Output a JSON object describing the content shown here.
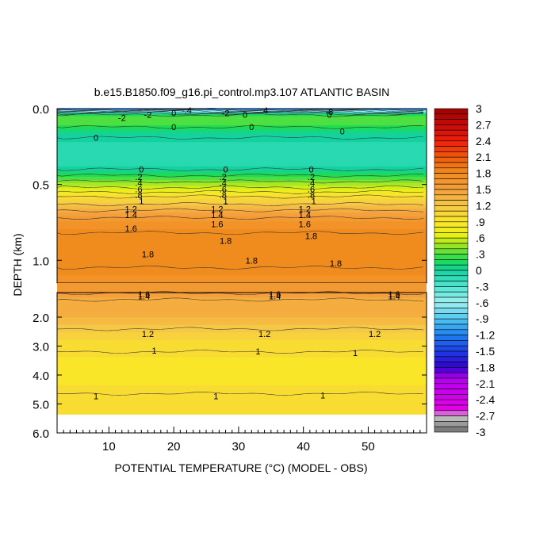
{
  "chart_data": {
    "type": "heatmap",
    "title": "b.e15.B1850.f09_g16.pi_control.mp3.107 ATLANTIC BASIN",
    "xlabel": "POTENTIAL TEMPERATURE (°C) (MODEL - OBS)",
    "ylabel": "DEPTH (km)",
    "xlim": [
      2,
      59
    ],
    "x_ticks": [
      "10",
      "20",
      "30",
      "40",
      "50"
    ],
    "x_tick_values": [
      10,
      20,
      30,
      40,
      50
    ],
    "upper_panel": {
      "ylim": [
        0,
        1.15
      ],
      "y_ticks": [
        "0.0",
        "0.5",
        "1.0"
      ],
      "y_tick_values": [
        0.0,
        0.5,
        1.0
      ]
    },
    "lower_panel": {
      "ylim": [
        1.15,
        6.0
      ],
      "y_ticks": [
        "2.0",
        "3.0",
        "4.0",
        "5.0",
        "6.0"
      ],
      "y_tick_values": [
        2.0,
        3.0,
        4.0,
        5.0,
        6.0
      ]
    },
    "data_bottom_depth": 5.35,
    "depth_profile": [
      {
        "depth": 0.0,
        "value": -1.4
      },
      {
        "depth": 0.02,
        "value": -0.5
      },
      {
        "depth": 0.04,
        "value": 0.2
      },
      {
        "depth": 0.07,
        "value": 0.35
      },
      {
        "depth": 0.11,
        "value": 0.25
      },
      {
        "depth": 0.16,
        "value": 0.05
      },
      {
        "depth": 0.22,
        "value": -0.05
      },
      {
        "depth": 0.3,
        "value": -0.15
      },
      {
        "depth": 0.36,
        "value": -0.1
      },
      {
        "depth": 0.4,
        "value": 0.0
      },
      {
        "depth": 0.44,
        "value": 0.2
      },
      {
        "depth": 0.48,
        "value": 0.4
      },
      {
        "depth": 0.52,
        "value": 0.6
      },
      {
        "depth": 0.55,
        "value": 0.8
      },
      {
        "depth": 0.58,
        "value": 1.0
      },
      {
        "depth": 0.63,
        "value": 1.2
      },
      {
        "depth": 0.67,
        "value": 1.4
      },
      {
        "depth": 0.72,
        "value": 1.6
      },
      {
        "depth": 0.82,
        "value": 1.8
      },
      {
        "depth": 1.0,
        "value": 1.85
      },
      {
        "depth": 1.1,
        "value": 1.75
      },
      {
        "depth": 1.2,
        "value": 1.55
      },
      {
        "depth": 1.4,
        "value": 1.4
      },
      {
        "depth": 2.0,
        "value": 1.35
      },
      {
        "depth": 2.4,
        "value": 1.2
      },
      {
        "depth": 2.8,
        "value": 1.05
      },
      {
        "depth": 3.2,
        "value": 1.0
      },
      {
        "depth": 3.5,
        "value": 0.92
      },
      {
        "depth": 3.8,
        "value": 0.88
      },
      {
        "depth": 4.1,
        "value": 0.9
      },
      {
        "depth": 4.5,
        "value": 0.98
      },
      {
        "depth": 4.8,
        "value": 1.02
      },
      {
        "depth": 5.35,
        "value": 1.05
      }
    ],
    "contour_labels": [
      {
        "text": "-2",
        "x": 16,
        "depth": 0.04
      },
      {
        "text": "0",
        "x": 20,
        "depth": 0.03
      },
      {
        "text": "-.4",
        "x": 22,
        "depth": 0.01
      },
      {
        "text": "-2",
        "x": 12,
        "depth": 0.06
      },
      {
        "text": "0",
        "x": 8,
        "depth": 0.19
      },
      {
        "text": "0",
        "x": 20,
        "depth": 0.12
      },
      {
        "text": "-2",
        "x": 28,
        "depth": 0.03
      },
      {
        "text": "0",
        "x": 31,
        "depth": 0.04
      },
      {
        "text": ".4",
        "x": 34,
        "depth": 0.01
      },
      {
        "text": "0",
        "x": 32,
        "depth": 0.12
      },
      {
        "text": "-8",
        "x": 44,
        "depth": 0.02
      },
      {
        "text": "0",
        "x": 44,
        "depth": 0.04
      },
      {
        "text": "0",
        "x": 46,
        "depth": 0.15
      },
      {
        "text": "0",
        "x": 15,
        "depth": 0.4
      },
      {
        "text": ".2",
        "x": 14.6,
        "depth": 0.45
      },
      {
        "text": ".4",
        "x": 14.6,
        "depth": 0.49
      },
      {
        "text": ".6",
        "x": 14.6,
        "depth": 0.53
      },
      {
        "text": ".8",
        "x": 14.6,
        "depth": 0.57
      },
      {
        "text": "1",
        "x": 15,
        "depth": 0.61
      },
      {
        "text": "1.2",
        "x": 13.4,
        "depth": 0.66
      },
      {
        "text": "1.4",
        "x": 13.4,
        "depth": 0.7
      },
      {
        "text": "1.6",
        "x": 13.4,
        "depth": 0.79
      },
      {
        "text": "1.8",
        "x": 16,
        "depth": 0.96
      },
      {
        "text": "0",
        "x": 28,
        "depth": 0.4
      },
      {
        "text": ".2",
        "x": 27.6,
        "depth": 0.45
      },
      {
        "text": ".4",
        "x": 27.6,
        "depth": 0.49
      },
      {
        "text": ".6",
        "x": 27.6,
        "depth": 0.53
      },
      {
        "text": ".8",
        "x": 27.6,
        "depth": 0.57
      },
      {
        "text": "1",
        "x": 28,
        "depth": 0.61
      },
      {
        "text": "1.2",
        "x": 26.7,
        "depth": 0.66
      },
      {
        "text": "1.4",
        "x": 26.7,
        "depth": 0.7
      },
      {
        "text": "1.6",
        "x": 26.7,
        "depth": 0.76
      },
      {
        "text": "1.8",
        "x": 28,
        "depth": 0.87
      },
      {
        "text": "1.8",
        "x": 32,
        "depth": 1.0
      },
      {
        "text": "0",
        "x": 41.2,
        "depth": 0.4
      },
      {
        "text": ".2",
        "x": 41.2,
        "depth": 0.45
      },
      {
        "text": ".4",
        "x": 41.2,
        "depth": 0.49
      },
      {
        "text": ".6",
        "x": 41.2,
        "depth": 0.53
      },
      {
        "text": ".8",
        "x": 41.2,
        "depth": 0.57
      },
      {
        "text": "1",
        "x": 41.6,
        "depth": 0.61
      },
      {
        "text": "1.2",
        "x": 40.2,
        "depth": 0.66
      },
      {
        "text": "1.4",
        "x": 40.2,
        "depth": 0.7
      },
      {
        "text": "1.6",
        "x": 40.2,
        "depth": 0.76
      },
      {
        "text": "1.8",
        "x": 41.2,
        "depth": 0.84
      },
      {
        "text": "1.8",
        "x": 45,
        "depth": 1.02
      },
      {
        "text": "1.6",
        "x": 15.4,
        "depth": 1.2
      },
      {
        "text": "1.4",
        "x": 15.4,
        "depth": 1.28
      },
      {
        "text": "1.6",
        "x": 35.6,
        "depth": 1.2
      },
      {
        "text": "1.4",
        "x": 35.6,
        "depth": 1.28
      },
      {
        "text": "1.6",
        "x": 54,
        "depth": 1.2
      },
      {
        "text": "1.4",
        "x": 54,
        "depth": 1.28
      },
      {
        "text": "1.2",
        "x": 16,
        "depth": 2.58
      },
      {
        "text": "1.2",
        "x": 34,
        "depth": 2.58
      },
      {
        "text": "1.2",
        "x": 51,
        "depth": 2.58
      },
      {
        "text": "1",
        "x": 17,
        "depth": 3.15
      },
      {
        "text": "1",
        "x": 33,
        "depth": 3.18
      },
      {
        "text": "1",
        "x": 48,
        "depth": 3.23
      },
      {
        "text": "1",
        "x": 8,
        "depth": 4.72
      },
      {
        "text": "1",
        "x": 26.5,
        "depth": 4.72
      },
      {
        "text": "1",
        "x": 43,
        "depth": 4.7
      }
    ],
    "colorbar": {
      "min": -3,
      "max": 3,
      "labels": [
        "3",
        "2.7",
        "2.4",
        "2.1",
        "1.8",
        "1.5",
        "1.2",
        ".9",
        ".6",
        ".3",
        "0",
        "-.3",
        "-.6",
        "-.9",
        "-1.2",
        "-1.5",
        "-1.8",
        "-2.1",
        "-2.4",
        "-2.7",
        "-3"
      ],
      "label_values": [
        3,
        2.7,
        2.4,
        2.1,
        1.8,
        1.5,
        1.2,
        0.9,
        0.6,
        0.3,
        0,
        -0.3,
        -0.6,
        -0.9,
        -1.2,
        -1.5,
        -1.8,
        -2.1,
        -2.4,
        -2.7,
        -3
      ],
      "color_stops": [
        {
          "v": -3.0,
          "c": "#6e6e6e"
        },
        {
          "v": -2.7,
          "c": "#c8c8c8"
        },
        {
          "v": -2.6,
          "c": "#e600e6"
        },
        {
          "v": -2.0,
          "c": "#b400f0"
        },
        {
          "v": -1.8,
          "c": "#3200d2"
        },
        {
          "v": -1.5,
          "c": "#1e3ce6"
        },
        {
          "v": -1.2,
          "c": "#1e82f0"
        },
        {
          "v": -0.9,
          "c": "#50c8f0"
        },
        {
          "v": -0.6,
          "c": "#a0f0f0"
        },
        {
          "v": -0.3,
          "c": "#50e6d2"
        },
        {
          "v": 0.0,
          "c": "#14d2a0"
        },
        {
          "v": 0.2,
          "c": "#1edc50"
        },
        {
          "v": 0.45,
          "c": "#96e628"
        },
        {
          "v": 0.65,
          "c": "#e6f014"
        },
        {
          "v": 0.9,
          "c": "#fae628"
        },
        {
          "v": 1.2,
          "c": "#f5c846"
        },
        {
          "v": 1.5,
          "c": "#f5a03c"
        },
        {
          "v": 1.8,
          "c": "#f08c1e"
        },
        {
          "v": 2.1,
          "c": "#f05a0a"
        },
        {
          "v": 2.4,
          "c": "#f01e0a"
        },
        {
          "v": 2.7,
          "c": "#c80a0a"
        },
        {
          "v": 3.0,
          "c": "#a00000"
        }
      ]
    }
  }
}
